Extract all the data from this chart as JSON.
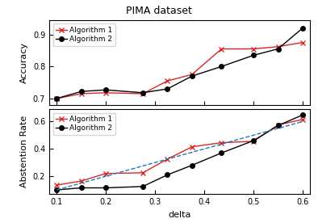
{
  "title": "PIMA dataset",
  "xlabel": "delta",
  "ylabel_top": "Accuracy",
  "ylabel_bottom": "Abstention Rate",
  "delta": [
    0.1,
    0.15,
    0.2,
    0.275,
    0.325,
    0.375,
    0.435,
    0.5,
    0.55,
    0.6
  ],
  "acc_alg1": [
    0.7,
    0.715,
    0.718,
    0.715,
    0.755,
    0.775,
    0.855,
    0.855,
    0.862,
    0.875
  ],
  "acc_alg2": [
    0.7,
    0.722,
    0.727,
    0.718,
    0.73,
    0.77,
    0.8,
    0.835,
    0.855,
    0.92
  ],
  "abs_alg1": [
    0.135,
    0.165,
    0.22,
    0.225,
    0.325,
    0.415,
    0.445,
    0.455,
    0.575,
    0.615
  ],
  "abs_alg2": [
    0.1,
    0.115,
    0.115,
    0.125,
    0.21,
    0.28,
    0.37,
    0.46,
    0.57,
    0.648
  ],
  "abs_ref": [
    0.1,
    0.15,
    0.2,
    0.275,
    0.325,
    0.375,
    0.435,
    0.5,
    0.55,
    0.6
  ],
  "color_alg1": "#d62728",
  "color_alg2": "#000000",
  "color_ref": "#1f77b4",
  "acc_ylim": [
    0.68,
    0.945
  ],
  "acc_yticks": [
    0.7,
    0.8,
    0.9
  ],
  "abs_ylim": [
    0.07,
    0.69
  ],
  "abs_yticks": [
    0.2,
    0.4,
    0.6
  ],
  "xlim": [
    0.085,
    0.615
  ],
  "xticks": [
    0.1,
    0.2,
    0.3,
    0.4,
    0.5,
    0.6
  ]
}
